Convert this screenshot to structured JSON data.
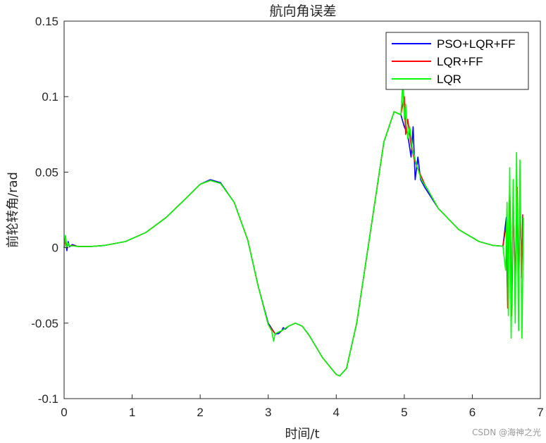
{
  "watermark": "CSDN @海神之光",
  "chart_data": {
    "type": "line",
    "title": "航向角误差",
    "xlabel": "时间/t",
    "ylabel": "前轮转角/rad",
    "xlim": [
      0,
      7
    ],
    "ylim": [
      -0.1,
      0.15
    ],
    "xticks": [
      0,
      1,
      2,
      3,
      4,
      5,
      6,
      7
    ],
    "xtick_labels": [
      "0",
      "1",
      "2",
      "3",
      "4",
      "5",
      "6",
      "7"
    ],
    "yticks": [
      -0.1,
      -0.05,
      0,
      0.05,
      0.1,
      0.15
    ],
    "ytick_labels": [
      "-0.1",
      "-0.05",
      "0",
      "0.05",
      "0.1",
      "0.15"
    ],
    "grid": false,
    "legend_position": "top-right",
    "series": [
      {
        "name": "PSO+LQR+FF",
        "color": "#0000ff",
        "points": [
          [
            0,
            0
          ],
          [
            0.02,
            0.006
          ],
          [
            0.04,
            -0.002
          ],
          [
            0.06,
            0.004
          ],
          [
            0.08,
            0.0005
          ],
          [
            0.12,
            0.002
          ],
          [
            0.2,
            0.0008
          ],
          [
            0.4,
            0.0008
          ],
          [
            0.6,
            0.0015
          ],
          [
            0.9,
            0.004
          ],
          [
            1.2,
            0.01
          ],
          [
            1.5,
            0.02
          ],
          [
            1.8,
            0.033
          ],
          [
            2.0,
            0.042
          ],
          [
            2.15,
            0.045
          ],
          [
            2.3,
            0.043
          ],
          [
            2.5,
            0.03
          ],
          [
            2.7,
            0.005
          ],
          [
            2.85,
            -0.025
          ],
          [
            3.0,
            -0.05
          ],
          [
            3.1,
            -0.057
          ],
          [
            3.15,
            -0.057
          ],
          [
            3.2,
            -0.055
          ],
          [
            3.22,
            -0.053
          ],
          [
            3.25,
            -0.054
          ],
          [
            3.3,
            -0.052
          ],
          [
            3.4,
            -0.05
          ],
          [
            3.5,
            -0.052
          ],
          [
            3.6,
            -0.058
          ],
          [
            3.8,
            -0.073
          ],
          [
            4.0,
            -0.084
          ],
          [
            4.05,
            -0.085
          ],
          [
            4.15,
            -0.08
          ],
          [
            4.3,
            -0.05
          ],
          [
            4.5,
            0.01
          ],
          [
            4.7,
            0.07
          ],
          [
            4.85,
            0.09
          ],
          [
            4.95,
            0.088
          ],
          [
            5.0,
            0.08
          ],
          [
            5.05,
            0.075
          ],
          [
            5.1,
            0.06
          ],
          [
            5.13,
            0.08
          ],
          [
            5.16,
            0.045
          ],
          [
            5.2,
            0.06
          ],
          [
            5.24,
            0.045
          ],
          [
            5.3,
            0.04
          ],
          [
            5.5,
            0.026
          ],
          [
            5.8,
            0.012
          ],
          [
            6.1,
            0.004
          ],
          [
            6.3,
            0.0015
          ],
          [
            6.45,
            0.001
          ],
          [
            6.5,
            0.02
          ],
          [
            6.52,
            -0.035
          ],
          [
            6.55,
            0.04
          ],
          [
            6.58,
            -0.04
          ],
          [
            6.6,
            0.03
          ],
          [
            6.63,
            -0.02
          ],
          [
            6.66,
            0.035
          ],
          [
            6.68,
            -0.035
          ],
          [
            6.7,
            0.03
          ],
          [
            6.72,
            -0.01
          ],
          [
            6.74,
            0.015
          ]
        ]
      },
      {
        "name": "LQR+FF",
        "color": "#ff0000",
        "points": [
          [
            0,
            0
          ],
          [
            0.02,
            0.005
          ],
          [
            0.04,
            0.0
          ],
          [
            0.06,
            0.003
          ],
          [
            0.08,
            0.001
          ],
          [
            0.12,
            0.0015
          ],
          [
            0.2,
            0.0008
          ],
          [
            0.4,
            0.0008
          ],
          [
            0.6,
            0.0015
          ],
          [
            0.9,
            0.004
          ],
          [
            1.2,
            0.01
          ],
          [
            1.5,
            0.02
          ],
          [
            1.8,
            0.033
          ],
          [
            2.0,
            0.042
          ],
          [
            2.15,
            0.0445
          ],
          [
            2.3,
            0.0425
          ],
          [
            2.5,
            0.03
          ],
          [
            2.7,
            0.005
          ],
          [
            2.85,
            -0.025
          ],
          [
            3.0,
            -0.051
          ],
          [
            3.1,
            -0.057
          ],
          [
            3.2,
            -0.055
          ],
          [
            3.3,
            -0.052
          ],
          [
            3.4,
            -0.05
          ],
          [
            3.5,
            -0.052
          ],
          [
            3.6,
            -0.058
          ],
          [
            3.8,
            -0.073
          ],
          [
            4.0,
            -0.084
          ],
          [
            4.05,
            -0.085
          ],
          [
            4.15,
            -0.08
          ],
          [
            4.3,
            -0.05
          ],
          [
            4.5,
            0.01
          ],
          [
            4.7,
            0.07
          ],
          [
            4.85,
            0.09
          ],
          [
            4.95,
            0.088
          ],
          [
            5.0,
            0.1
          ],
          [
            5.02,
            0.075
          ],
          [
            5.05,
            0.085
          ],
          [
            5.1,
            0.068
          ],
          [
            5.15,
            0.058
          ],
          [
            5.2,
            0.052
          ],
          [
            5.3,
            0.042
          ],
          [
            5.5,
            0.026
          ],
          [
            5.8,
            0.012
          ],
          [
            6.1,
            0.004
          ],
          [
            6.3,
            0.0015
          ],
          [
            6.45,
            0.001
          ],
          [
            6.5,
            0.015
          ],
          [
            6.52,
            -0.04
          ],
          [
            6.55,
            0.042
          ],
          [
            6.58,
            -0.045
          ],
          [
            6.6,
            0.035
          ],
          [
            6.63,
            -0.03
          ],
          [
            6.66,
            0.04
          ],
          [
            6.68,
            -0.04
          ],
          [
            6.7,
            0.04
          ],
          [
            6.72,
            -0.02
          ],
          [
            6.74,
            0.022
          ]
        ]
      },
      {
        "name": "LQR",
        "color": "#00ff00",
        "points": [
          [
            0,
            0
          ],
          [
            0.02,
            0.008
          ],
          [
            0.04,
            0.0
          ],
          [
            0.06,
            0.003
          ],
          [
            0.08,
            0.001
          ],
          [
            0.12,
            0.0012
          ],
          [
            0.2,
            0.0008
          ],
          [
            0.4,
            0.0008
          ],
          [
            0.6,
            0.0015
          ],
          [
            0.9,
            0.004
          ],
          [
            1.2,
            0.01
          ],
          [
            1.5,
            0.02
          ],
          [
            1.8,
            0.033
          ],
          [
            2.0,
            0.042
          ],
          [
            2.15,
            0.0445
          ],
          [
            2.3,
            0.0425
          ],
          [
            2.5,
            0.03
          ],
          [
            2.7,
            0.005
          ],
          [
            2.85,
            -0.025
          ],
          [
            3.0,
            -0.051
          ],
          [
            3.05,
            -0.055
          ],
          [
            3.08,
            -0.062
          ],
          [
            3.1,
            -0.057
          ],
          [
            3.2,
            -0.055
          ],
          [
            3.3,
            -0.052
          ],
          [
            3.4,
            -0.05
          ],
          [
            3.5,
            -0.052
          ],
          [
            3.6,
            -0.058
          ],
          [
            3.8,
            -0.073
          ],
          [
            4.0,
            -0.084
          ],
          [
            4.05,
            -0.085
          ],
          [
            4.15,
            -0.08
          ],
          [
            4.3,
            -0.05
          ],
          [
            4.5,
            0.01
          ],
          [
            4.7,
            0.07
          ],
          [
            4.85,
            0.09
          ],
          [
            4.95,
            0.088
          ],
          [
            4.98,
            0.11
          ],
          [
            5.0,
            0.085
          ],
          [
            5.02,
            0.095
          ],
          [
            5.05,
            0.072
          ],
          [
            5.08,
            0.08
          ],
          [
            5.12,
            0.065
          ],
          [
            5.18,
            0.055
          ],
          [
            5.25,
            0.045
          ],
          [
            5.35,
            0.038
          ],
          [
            5.5,
            0.026
          ],
          [
            5.8,
            0.012
          ],
          [
            6.1,
            0.004
          ],
          [
            6.3,
            0.0015
          ],
          [
            6.45,
            0.001
          ],
          [
            6.49,
            -0.015
          ],
          [
            6.51,
            0.03
          ],
          [
            6.53,
            -0.045
          ],
          [
            6.55,
            0.053
          ],
          [
            6.57,
            -0.06
          ],
          [
            6.6,
            0.045
          ],
          [
            6.63,
            -0.05
          ],
          [
            6.65,
            0.063
          ],
          [
            6.68,
            -0.055
          ],
          [
            6.7,
            0.058
          ],
          [
            6.73,
            -0.06
          ],
          [
            6.75,
            0.02
          ]
        ]
      }
    ]
  }
}
